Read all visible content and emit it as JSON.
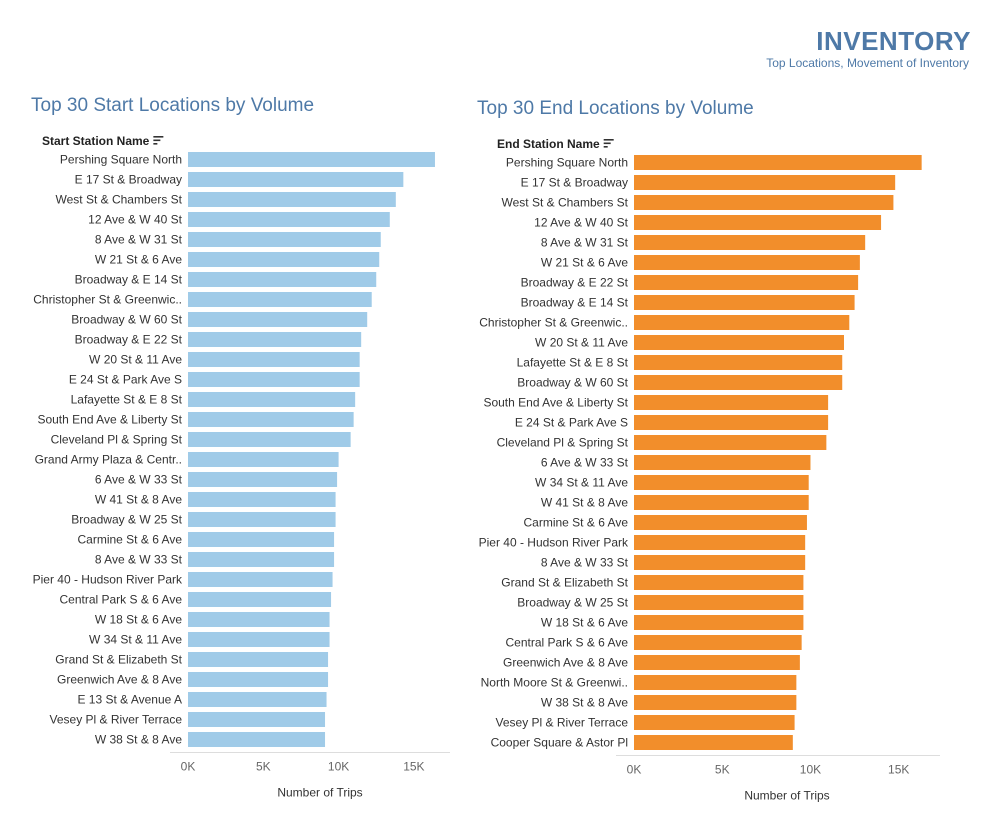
{
  "header": {
    "title": "INVENTORY",
    "subtitle": "Top Locations, Movement of Inventory"
  },
  "icons": {
    "sort": "sort-descending-icon"
  },
  "chart_data": [
    {
      "type": "bar",
      "orientation": "horizontal",
      "title": "Top 30 Start Locations by Volume",
      "field_label": "Start Station Name",
      "xlabel": "Number of Trips",
      "color": "#a0cbe8",
      "xlim": [
        0,
        17000
      ],
      "xticks": [
        "0K",
        "5K",
        "10K",
        "15K"
      ],
      "grid": false,
      "categories": [
        "Pershing Square North",
        "E 17 St & Broadway",
        "West St & Chambers St",
        "12 Ave & W 40 St",
        "8 Ave & W 31 St",
        "W 21 St & 6 Ave",
        "Broadway & E 14 St",
        "Christopher St & Greenwic..",
        "Broadway & W 60 St",
        "Broadway & E 22 St",
        "W 20 St & 11 Ave",
        "E 24 St & Park Ave S",
        "Lafayette St & E 8 St",
        "South End Ave & Liberty St",
        "Cleveland Pl & Spring St",
        "Grand Army Plaza & Centr..",
        "6 Ave & W 33 St",
        "W 41 St & 8 Ave",
        "Broadway & W 25 St",
        "Carmine St & 6 Ave",
        "8 Ave & W 33 St",
        "Pier 40 - Hudson River Park",
        "Central Park S & 6 Ave",
        "W 18 St & 6 Ave",
        "W 34 St & 11 Ave",
        "Grand St & Elizabeth St",
        "Greenwich Ave & 8 Ave",
        "E 13 St & Avenue A",
        "Vesey Pl & River Terrace",
        "W 38 St & 8 Ave"
      ],
      "values": [
        16400,
        14300,
        13800,
        13400,
        12800,
        12700,
        12500,
        12200,
        11900,
        11500,
        11400,
        11400,
        11100,
        11000,
        10800,
        10000,
        9900,
        9800,
        9800,
        9700,
        9700,
        9600,
        9500,
        9400,
        9400,
        9300,
        9300,
        9200,
        9100,
        9100
      ]
    },
    {
      "type": "bar",
      "orientation": "horizontal",
      "title": "Top 30 End Locations by Volume",
      "field_label": "End Station Name",
      "xlabel": "Number of Trips",
      "color": "#f28e2b",
      "xlim": [
        0,
        17000
      ],
      "xticks": [
        "0K",
        "5K",
        "10K",
        "15K"
      ],
      "grid": false,
      "categories": [
        "Pershing Square North",
        "E 17 St & Broadway",
        "West St & Chambers St",
        "12 Ave & W 40 St",
        "8 Ave & W 31 St",
        "W 21 St & 6 Ave",
        "Broadway & E 22 St",
        "Broadway & E 14 St",
        "Christopher St & Greenwic..",
        "W 20 St & 11 Ave",
        "Lafayette St & E 8 St",
        "Broadway & W 60 St",
        "South End Ave & Liberty St",
        "E 24 St & Park Ave S",
        "Cleveland Pl & Spring St",
        "6 Ave & W 33 St",
        "W 34 St & 11 Ave",
        "W 41 St & 8 Ave",
        "Carmine St & 6 Ave",
        "Pier 40 - Hudson River Park",
        "8 Ave & W 33 St",
        "Grand St & Elizabeth St",
        "Broadway & W 25 St",
        "W 18 St & 6 Ave",
        "Central Park S & 6 Ave",
        "Greenwich Ave & 8 Ave",
        "North Moore St & Greenwi..",
        "W 38 St & 8 Ave",
        "Vesey Pl & River Terrace",
        "Cooper Square & Astor Pl"
      ],
      "values": [
        16300,
        14800,
        14700,
        14000,
        13100,
        12800,
        12700,
        12500,
        12200,
        11900,
        11800,
        11800,
        11000,
        11000,
        10900,
        10000,
        9900,
        9900,
        9800,
        9700,
        9700,
        9600,
        9600,
        9600,
        9500,
        9400,
        9200,
        9200,
        9100,
        9000
      ]
    }
  ]
}
